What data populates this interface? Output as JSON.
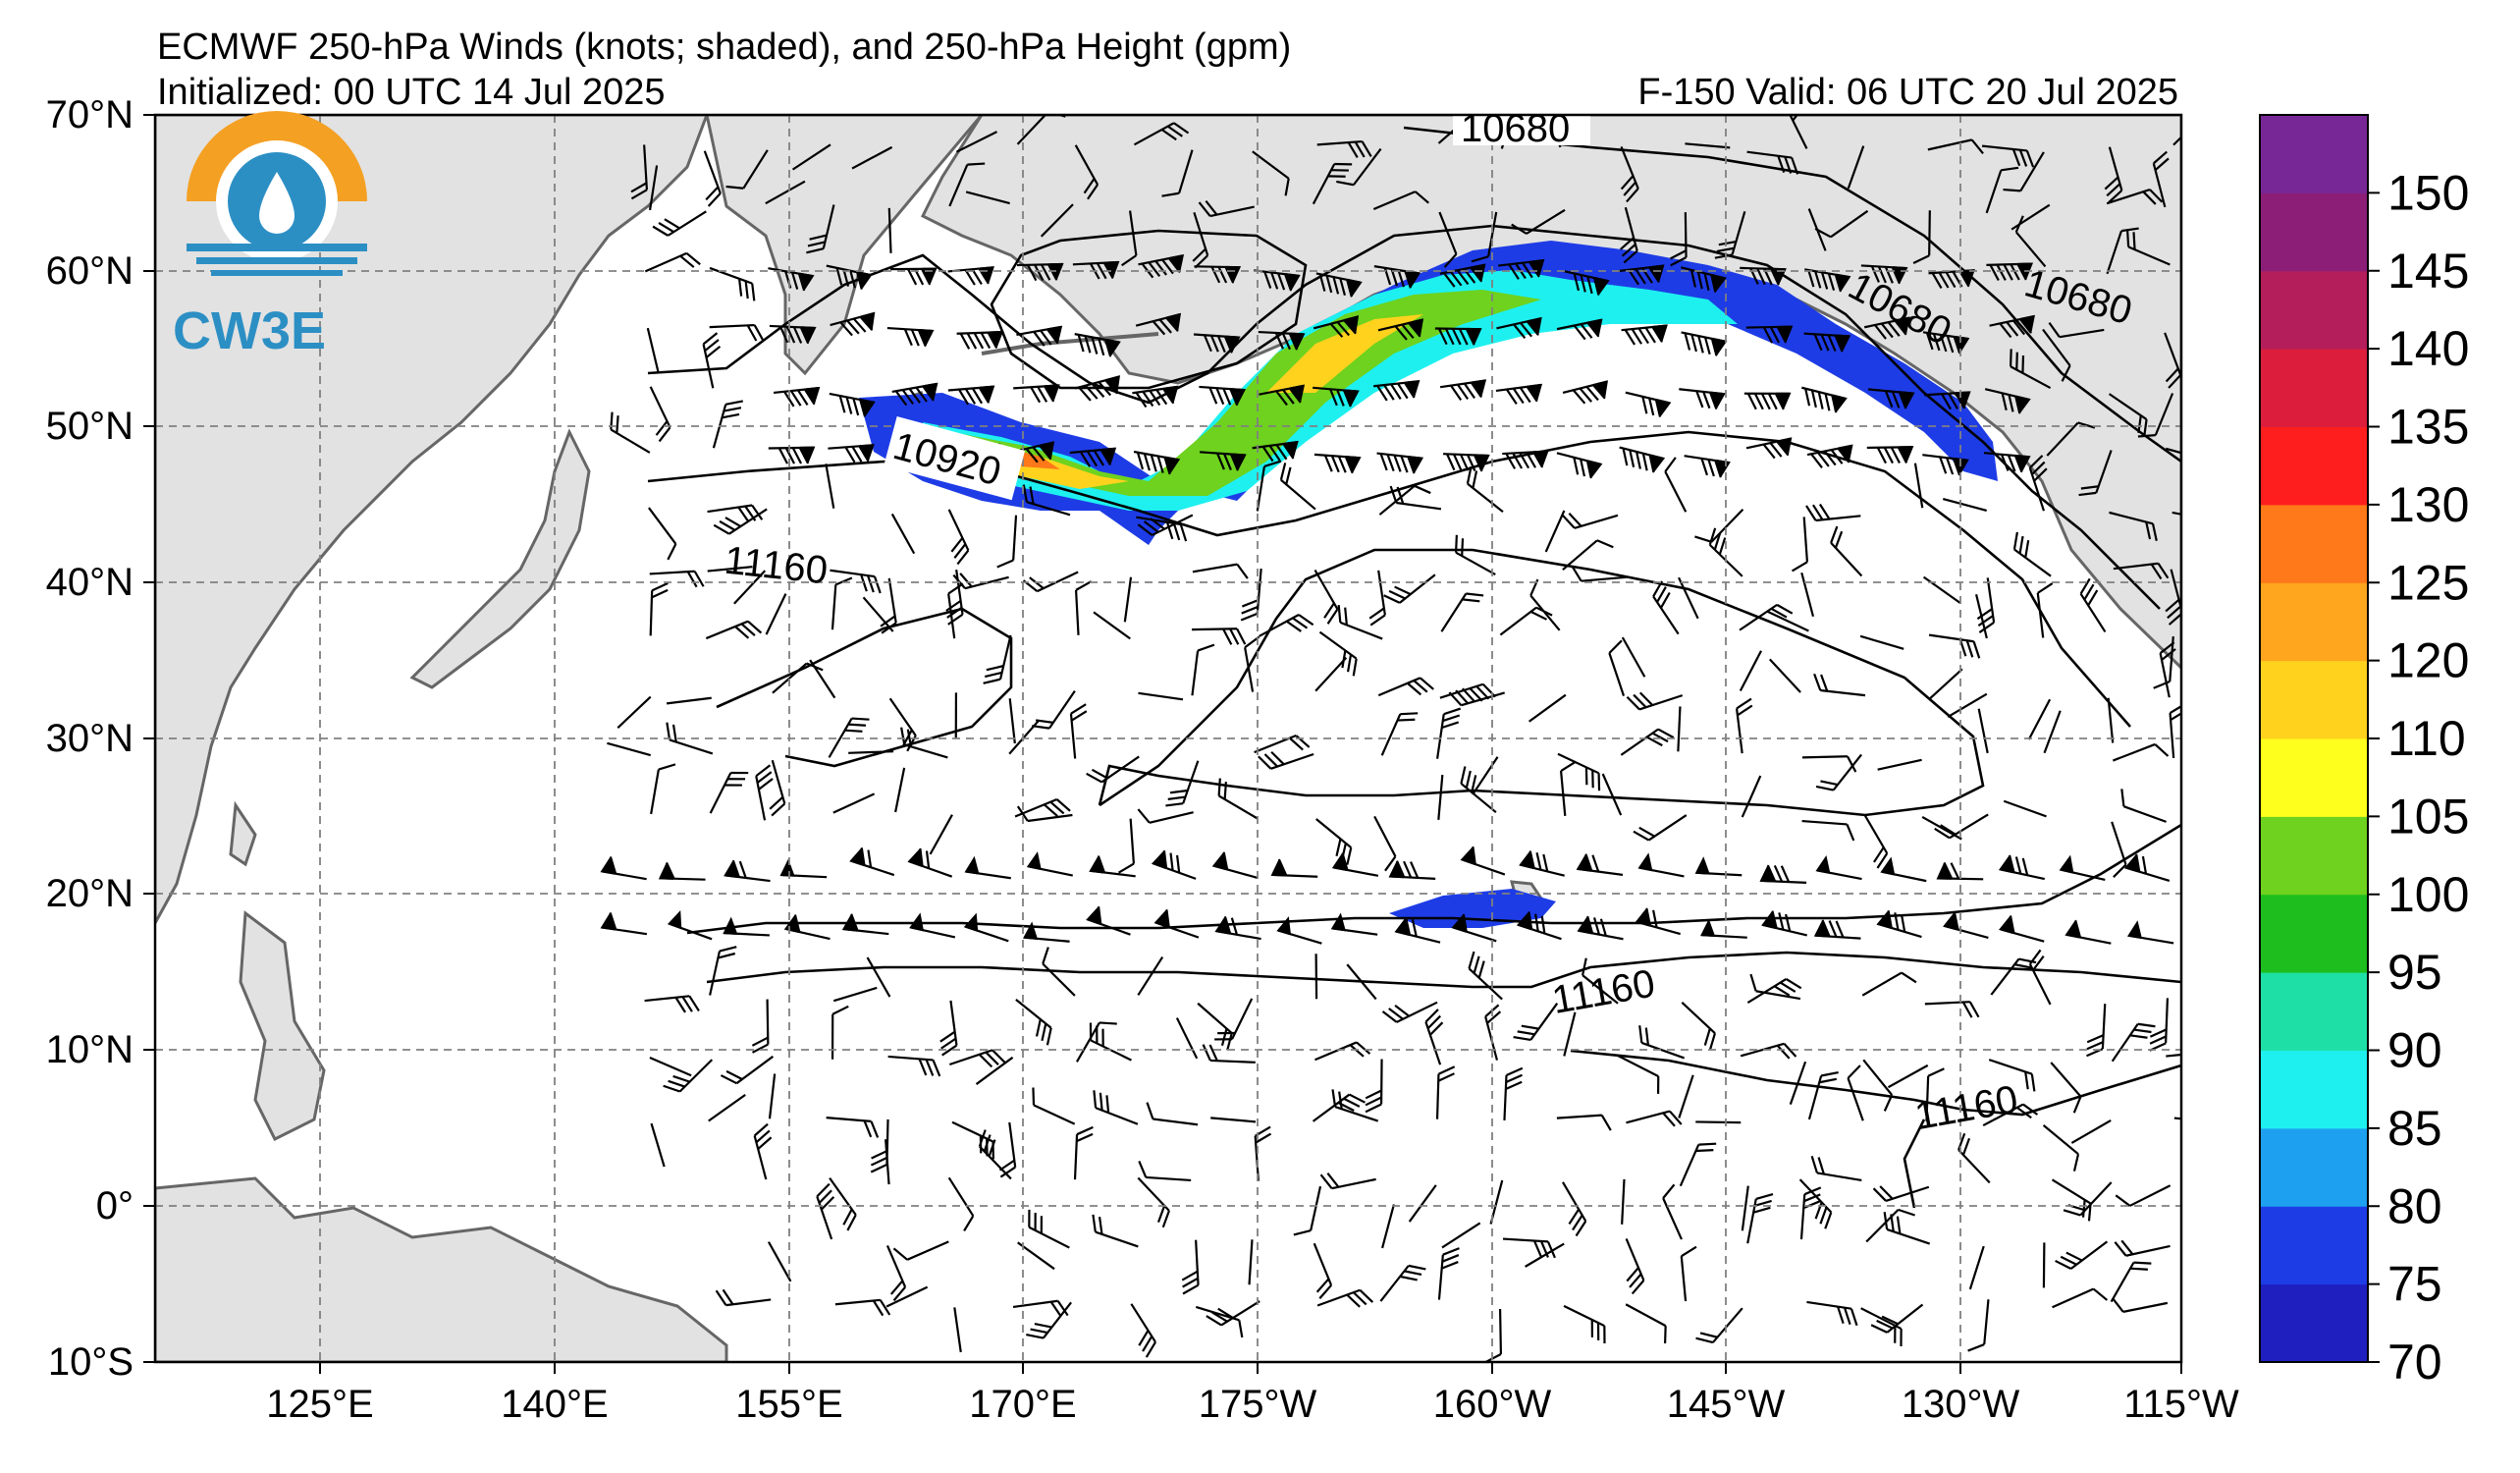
{
  "header": {
    "title": "ECMWF 250-hPa Winds (knots; shaded), and 250-hPa Height (gpm)",
    "initialized": "Initialized: 00 UTC 14 Jul 2025",
    "valid": "F-150  Valid: 06 UTC 20 Jul 2025"
  },
  "logo": {
    "text": "CW3E"
  },
  "axes": {
    "lat_labels": [
      "70°N",
      "60°N",
      "50°N",
      "40°N",
      "30°N",
      "20°N",
      "10°N",
      "0°",
      "10°S"
    ],
    "lon_labels": [
      "125°E",
      "140°E",
      "155°E",
      "170°E",
      "175°W",
      "160°W",
      "145°W",
      "130°W",
      "115°W"
    ]
  },
  "contour_labels": [
    "10680",
    "10680",
    "10680",
    "10920",
    "11160",
    "11160",
    "11160"
  ],
  "colorbar": {
    "levels": [
      "70",
      "75",
      "80",
      "85",
      "90",
      "95",
      "100",
      "105",
      "110",
      "120",
      "125",
      "130",
      "135",
      "140",
      "145",
      "150"
    ],
    "colors": [
      "#1f1fbf",
      "#1e3ce6",
      "#1ea0f0",
      "#1ef0f0",
      "#1ee0a6",
      "#1ebe1e",
      "#6ed21e",
      "#ffff1e",
      "#ffd21e",
      "#ffa51e",
      "#ff7819",
      "#ff1e1e",
      "#dc1e3c",
      "#b41e5a",
      "#8c1e78",
      "#782896"
    ]
  },
  "chart_data": {
    "type": "map",
    "lon_range": [
      "110°E",
      "115°W"
    ],
    "lat_range": [
      "10°S",
      "70°N"
    ],
    "shaded_variable": "250-hPa wind speed (knots)",
    "contour_variable": "250-hPa height (gpm)",
    "jet_core_max_knots_approx": 125
  }
}
